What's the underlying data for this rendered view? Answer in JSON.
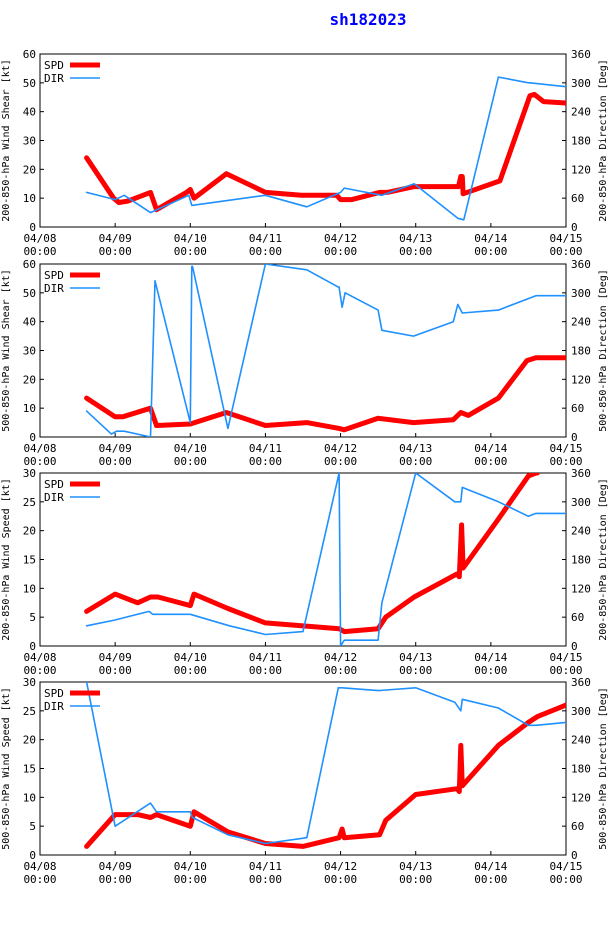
{
  "title": "sh182023",
  "colors": {
    "spd": "#ff0000",
    "dir": "#1e90ff",
    "title": "#0000ff",
    "axis": "#000000"
  },
  "x_ticks": [
    {
      "l1": "04/08",
      "l2": "00:00"
    },
    {
      "l1": "04/09",
      "l2": "00:00"
    },
    {
      "l1": "04/10",
      "l2": "00:00"
    },
    {
      "l1": "04/11",
      "l2": "00:00"
    },
    {
      "l1": "04/12",
      "l2": "00:00"
    },
    {
      "l1": "04/13",
      "l2": "00:00"
    },
    {
      "l1": "04/14",
      "l2": "00:00"
    },
    {
      "l1": "04/15",
      "l2": "00:00"
    }
  ],
  "chart_data": [
    {
      "type": "line",
      "ylabel_left": "200-850-hPa Wind Shear [kt]",
      "ylabel_right": "200-850-hPa Direction [Deg]",
      "ylim_left": [
        0,
        60
      ],
      "yticks_left": [
        "0",
        "10",
        "20",
        "30",
        "40",
        "50",
        "60"
      ],
      "ylim_right": [
        0,
        360
      ],
      "yticks_right": [
        "0",
        "60",
        "120",
        "180",
        "240",
        "300",
        "360"
      ],
      "xlim_days": [
        0,
        7
      ],
      "legend": [
        "SPD",
        "DIR"
      ],
      "series": [
        {
          "name": "SPD",
          "axis": "left",
          "x": [
            0.62,
            0.98,
            1.05,
            1.17,
            1.47,
            1.55,
            1.95,
            2.0,
            2.05,
            2.48,
            3.0,
            3.48,
            3.95,
            4.0,
            4.15,
            4.52,
            4.62,
            4.98,
            5.48,
            5.5,
            5.57,
            5.6,
            5.62,
            5.63,
            6.12,
            6.52,
            6.58,
            6.7,
            7.0
          ],
          "y": [
            24,
            10,
            8.5,
            9,
            12,
            6,
            12,
            13,
            10,
            18.5,
            12,
            11,
            11,
            9.5,
            9.5,
            12,
            12,
            14,
            14,
            14,
            14,
            17.5,
            17.5,
            11.5,
            16,
            45.5,
            46,
            43.5,
            43
          ]
        },
        {
          "name": "DIR",
          "axis": "right",
          "x": [
            0.62,
            1.0,
            1.12,
            1.47,
            1.98,
            2.02,
            3.0,
            3.55,
            4.0,
            4.05,
            4.55,
            4.98,
            5.56,
            5.64,
            6.1,
            6.5,
            6.52,
            7.0
          ],
          "y": [
            72,
            57,
            66,
            30,
            66,
            45,
            66,
            42,
            72,
            81,
            66,
            90,
            18,
            15,
            312,
            300,
            300,
            292
          ]
        }
      ]
    },
    {
      "type": "line",
      "ylabel_left": "500-850-hPa Wind Shear [kt]",
      "ylabel_right": "500-850-hPa Direction [Deg]",
      "ylim_left": [
        0,
        60
      ],
      "yticks_left": [
        "0",
        "10",
        "20",
        "30",
        "40",
        "50",
        "60"
      ],
      "ylim_right": [
        0,
        360
      ],
      "yticks_right": [
        "0",
        "60",
        "120",
        "180",
        "240",
        "300",
        "360"
      ],
      "xlim_days": [
        0,
        7
      ],
      "legend": [
        "SPD",
        "DIR"
      ],
      "series": [
        {
          "name": "SPD",
          "axis": "left",
          "x": [
            0.62,
            1.0,
            1.1,
            1.47,
            1.55,
            2.0,
            2.48,
            3.0,
            3.55,
            3.98,
            4.05,
            4.5,
            4.97,
            5.5,
            5.6,
            5.7,
            6.1,
            6.48,
            6.6,
            7.0
          ],
          "y": [
            13.5,
            7,
            7,
            10,
            4,
            4.5,
            8.5,
            4,
            5,
            3,
            2.5,
            6.5,
            5,
            6,
            8.5,
            7.5,
            13.5,
            26.5,
            27.5,
            27.5
          ]
        },
        {
          "name": "DIR",
          "axis": "right",
          "x": [
            0.62,
            0.95,
            1.02,
            1.12,
            1.47,
            1.53,
            2.0,
            2.02,
            2.03,
            2.5,
            3.0,
            3.55,
            3.97,
            3.98,
            4.02,
            4.06,
            4.5,
            4.55,
            4.97,
            5.5,
            5.56,
            5.62,
            6.1,
            6.6,
            7.0
          ],
          "y": [
            54,
            6,
            12,
            12,
            0,
            325,
            30,
            355,
            355,
            18,
            360,
            348,
            312,
            312,
            270,
            300,
            264,
            222,
            210,
            240,
            276,
            258,
            264,
            294,
            294
          ]
        }
      ]
    },
    {
      "type": "line",
      "ylabel_left": "200-850-hPa Wind Speed [kt]",
      "ylabel_right": "200-850-hPa Direction [Deg]",
      "ylim_left": [
        0,
        30
      ],
      "yticks_left": [
        "0",
        "5",
        "10",
        "15",
        "20",
        "25",
        "30"
      ],
      "ylim_right": [
        0,
        360
      ],
      "yticks_right": [
        "0",
        "60",
        "120",
        "180",
        "240",
        "300",
        "360"
      ],
      "xlim_days": [
        0,
        7
      ],
      "legend": [
        "SPD",
        "DIR"
      ],
      "series": [
        {
          "name": "SPD",
          "axis": "left",
          "x": [
            0.62,
            1.0,
            1.3,
            1.47,
            1.57,
            2.0,
            2.05,
            2.5,
            3.0,
            3.98,
            4.05,
            4.5,
            4.6,
            4.98,
            5.55,
            5.58,
            5.61,
            5.63,
            6.1,
            6.5,
            6.6,
            6.62
          ],
          "y": [
            6,
            9,
            7.5,
            8.5,
            8.5,
            7,
            9,
            6.5,
            4,
            3,
            2.5,
            3,
            5,
            8.5,
            12.5,
            12,
            21,
            13.5,
            22,
            29.5,
            30,
            30
          ]
        },
        {
          "name": "DIR",
          "axis": "right",
          "x": [
            0.62,
            1.0,
            1.45,
            1.5,
            2.0,
            2.52,
            3.0,
            3.5,
            3.98,
            4.0,
            4.05,
            4.5,
            4.55,
            5.0,
            5.52,
            5.6,
            5.62,
            6.1,
            6.5,
            6.6,
            7.0
          ],
          "y": [
            42,
            54,
            72,
            66,
            66,
            42,
            24,
            30,
            360,
            0,
            12,
            12,
            90,
            360,
            300,
            300,
            330,
            300,
            270,
            276,
            276
          ]
        }
      ]
    },
    {
      "type": "line",
      "ylabel_left": "500-850-hPa Wind Speed [kt]",
      "ylabel_right": "500-850-hPa Direction [Deg]",
      "ylim_left": [
        0,
        30
      ],
      "yticks_left": [
        "0",
        "5",
        "10",
        "15",
        "20",
        "25",
        "30"
      ],
      "ylim_right": [
        0,
        360
      ],
      "yticks_right": [
        "0",
        "60",
        "120",
        "180",
        "240",
        "300",
        "360"
      ],
      "xlim_days": [
        0,
        7
      ],
      "legend": [
        "SPD",
        "DIR"
      ],
      "series": [
        {
          "name": "SPD",
          "axis": "left",
          "x": [
            0.62,
            1.0,
            1.3,
            1.47,
            1.55,
            2.0,
            2.05,
            2.5,
            3.0,
            3.5,
            3.98,
            4.02,
            4.05,
            4.52,
            4.6,
            5.0,
            5.55,
            5.58,
            5.6,
            5.62,
            6.1,
            6.5,
            6.62,
            7.0
          ],
          "y": [
            1.5,
            7,
            7,
            6.5,
            7,
            5,
            7.5,
            4,
            2,
            1.5,
            3,
            4.5,
            3,
            3.5,
            6,
            10.5,
            11.5,
            11,
            19,
            12,
            19,
            23,
            24,
            26
          ]
        },
        {
          "name": "DIR",
          "axis": "right",
          "x": [
            0.62,
            1.0,
            1.47,
            1.55,
            2.0,
            2.03,
            2.5,
            3.0,
            3.55,
            3.97,
            4.02,
            4.5,
            5.0,
            5.52,
            5.6,
            5.62,
            6.1,
            6.5,
            6.6,
            7.0
          ],
          "y": [
            360,
            60,
            108,
            90,
            90,
            78,
            42,
            24,
            36,
            348,
            348,
            342,
            348,
            318,
            300,
            324,
            306,
            270,
            270,
            276
          ]
        }
      ]
    }
  ]
}
